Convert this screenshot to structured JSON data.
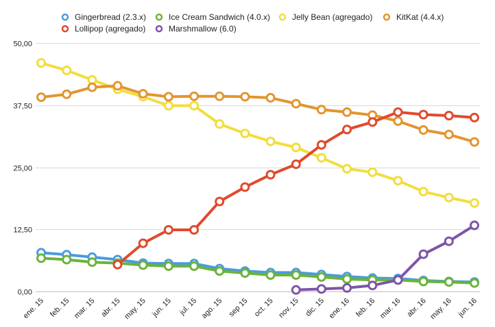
{
  "chart_data": {
    "type": "line",
    "title": "",
    "xlabel": "",
    "ylabel": "",
    "ylim": [
      0,
      50
    ],
    "yticks": [
      "0,00",
      "12,50",
      "25,00",
      "37,50",
      "50,00"
    ],
    "ytick_values": [
      0,
      12.5,
      25,
      37.5,
      50
    ],
    "grid": true,
    "legend_position": "top",
    "categories": [
      "ene. 15",
      "feb. 15",
      "mar. 15",
      "abr. 15",
      "may. 15",
      "jun. 15",
      "jul. 15",
      "ago. 15",
      "sep 15",
      "oct. 15",
      "nov. 15",
      "dic. 15",
      "ene. 16",
      "feb. 16",
      "mar. 16",
      "abr. 16",
      "may. 16",
      "jun. 16"
    ],
    "series": [
      {
        "name": "Gingerbread (2.3.x)",
        "color": "#4a9be0",
        "values": [
          7.8,
          7.4,
          6.9,
          6.4,
          5.7,
          5.6,
          5.6,
          4.6,
          4.1,
          3.8,
          3.8,
          3.4,
          3.0,
          2.7,
          2.6,
          2.2,
          2.0,
          1.9
        ]
      },
      {
        "name": "Ice Cream Sandwich (4.0.x)",
        "color": "#6bb33a",
        "values": [
          6.7,
          6.4,
          5.9,
          5.7,
          5.3,
          5.1,
          5.1,
          4.1,
          3.7,
          3.3,
          3.3,
          2.9,
          2.5,
          2.3,
          2.3,
          2.0,
          1.9,
          1.7
        ]
      },
      {
        "name": "Jelly Bean (agregado)",
        "color": "#f2dd3c",
        "values": [
          46.0,
          44.5,
          42.6,
          40.7,
          39.2,
          37.4,
          37.4,
          33.7,
          31.8,
          30.2,
          29.0,
          26.9,
          24.7,
          24.0,
          22.3,
          20.1,
          18.9,
          17.8
        ]
      },
      {
        "name": "KitKat (4.4.x)",
        "color": "#e2952f",
        "values": [
          39.1,
          39.7,
          41.1,
          41.4,
          39.8,
          39.2,
          39.3,
          39.3,
          39.2,
          39.0,
          37.8,
          36.6,
          36.1,
          35.5,
          34.3,
          32.5,
          31.6,
          30.1
        ]
      },
      {
        "name": "Lollipop (agregado)",
        "color": "#e04a2c",
        "values": [
          null,
          null,
          null,
          5.4,
          9.7,
          12.4,
          12.4,
          18.1,
          21.0,
          23.5,
          25.6,
          29.5,
          32.6,
          34.1,
          36.1,
          35.6,
          35.4,
          35.0
        ]
      },
      {
        "name": "Marshmallow (6.0)",
        "color": "#7d55a8",
        "values": [
          null,
          null,
          null,
          null,
          null,
          null,
          null,
          null,
          null,
          null,
          0.3,
          0.5,
          0.7,
          1.2,
          2.3,
          7.5,
          10.1,
          13.3
        ]
      }
    ]
  }
}
